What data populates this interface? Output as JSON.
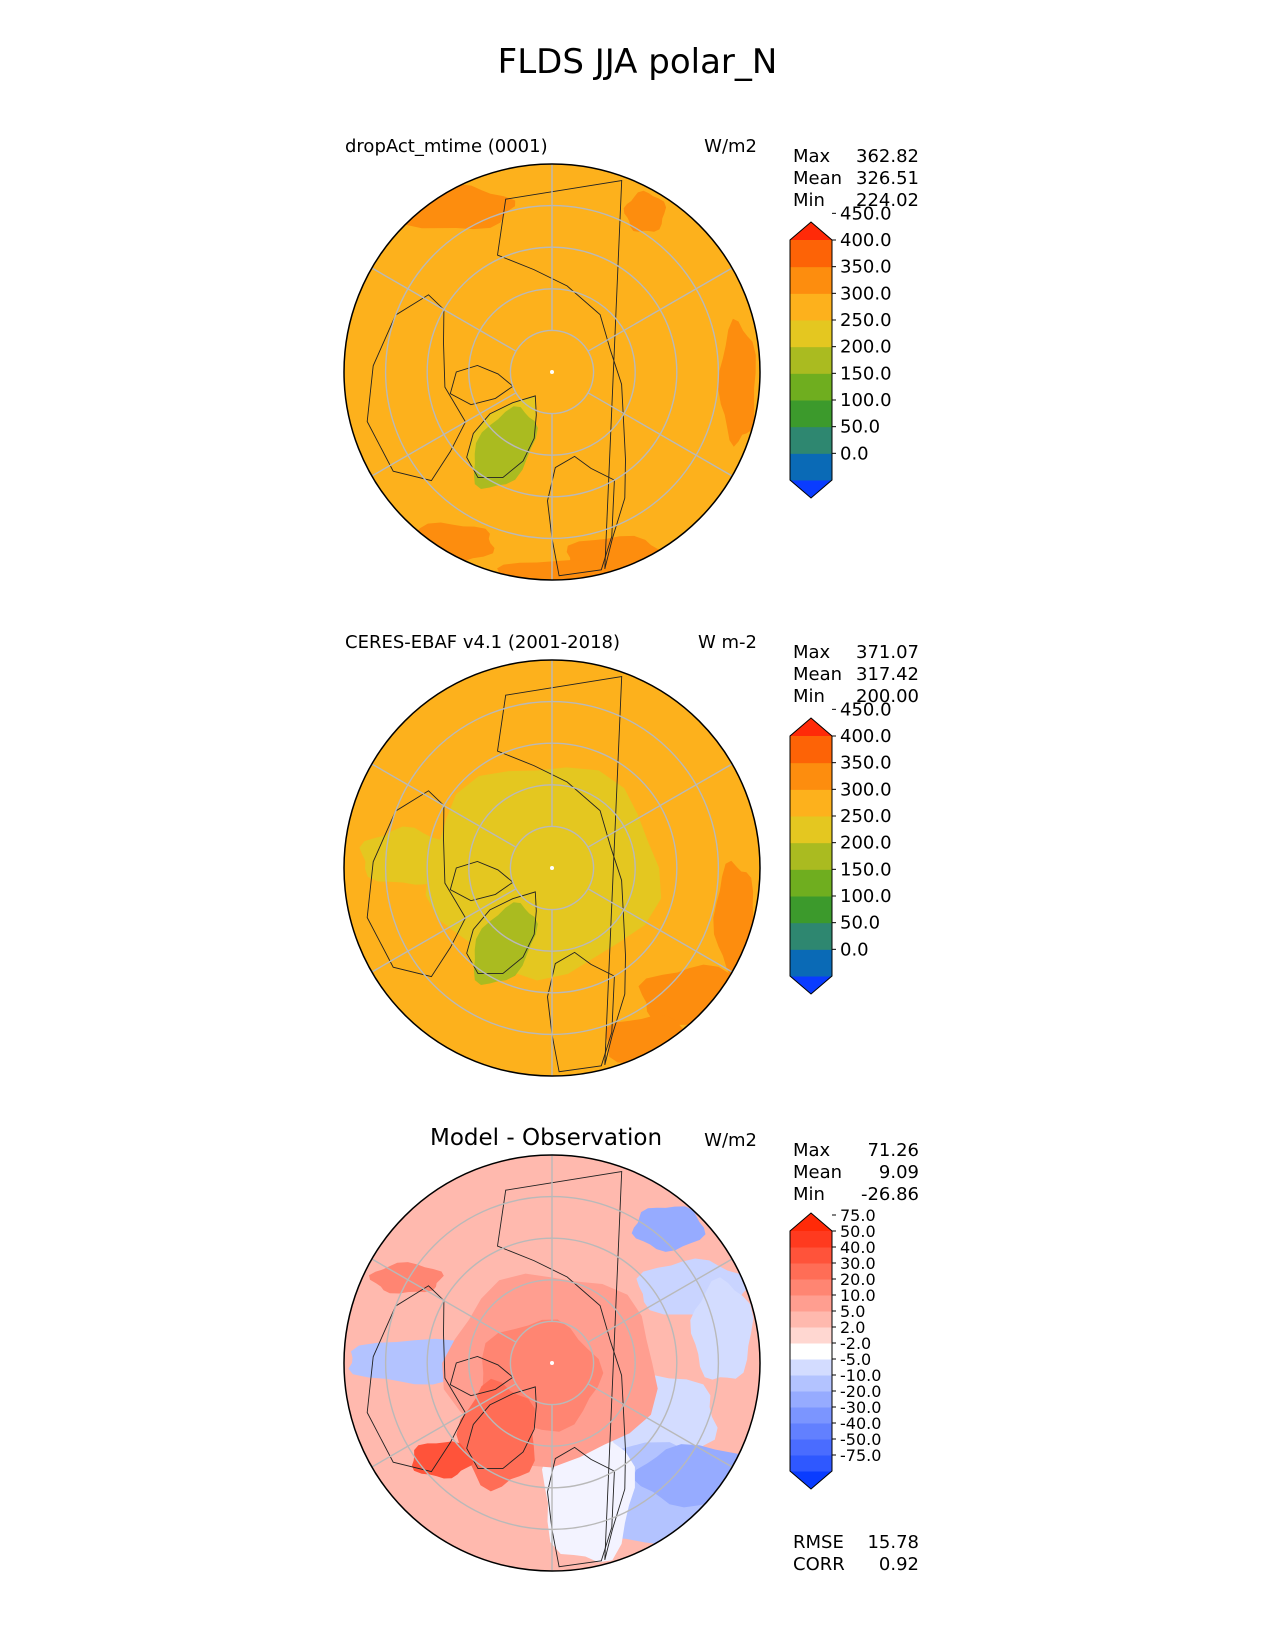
{
  "title": "FLDS JJA polar_N",
  "panels": [
    {
      "title": "dropAct_mtime (0001)",
      "units": "W/m2",
      "stats": [
        {
          "label": "Max",
          "value": "362.82"
        },
        {
          "label": "Mean",
          "value": "326.51"
        },
        {
          "label": "Min",
          "value": "224.02"
        }
      ],
      "colorbar": {
        "levels": [
          "0.0",
          "50.0",
          "100.0",
          "150.0",
          "200.0",
          "250.0",
          "300.0",
          "350.0",
          "400.0",
          "450.0"
        ],
        "colors": [
          "#0a3cff",
          "#0a6ab6",
          "#2e8770",
          "#3c9a2c",
          "#6fae1f",
          "#aabb20",
          "#e4c720",
          "#fdb11c",
          "#fd8d0e",
          "#fd6306",
          "#ff2a08"
        ],
        "extend": "both"
      },
      "field": {
        "background": "#fdb11c",
        "rim": "#fd8d0e",
        "ice": "#e4c720",
        "ice_core": "#aabb20"
      }
    },
    {
      "title": "CERES-EBAF v4.1 (2001-2018)",
      "units": "W m-2",
      "stats": [
        {
          "label": "Max",
          "value": "371.07"
        },
        {
          "label": "Mean",
          "value": "317.42"
        },
        {
          "label": "Min",
          "value": "200.00"
        }
      ],
      "colorbar": {
        "levels": [
          "0.0",
          "50.0",
          "100.0",
          "150.0",
          "200.0",
          "250.0",
          "300.0",
          "350.0",
          "400.0",
          "450.0"
        ],
        "colors": [
          "#0a3cff",
          "#0a6ab6",
          "#2e8770",
          "#3c9a2c",
          "#6fae1f",
          "#aabb20",
          "#e4c720",
          "#fdb11c",
          "#fd8d0e",
          "#fd6306",
          "#ff2a08"
        ],
        "extend": "both"
      },
      "field": {
        "background": "#fdb11c",
        "rim": "#fd8d0e",
        "ice": "#e4c720",
        "ice_core": "#aabb20"
      }
    },
    {
      "title": "Model - Observation",
      "units": "W/m2",
      "stats": [
        {
          "label": "Max",
          "value": "71.26"
        },
        {
          "label": "Mean",
          "value": "9.09"
        },
        {
          "label": "Min",
          "value": "-26.86"
        }
      ],
      "colorbar": {
        "levels": [
          "-75.0",
          "-50.0",
          "-40.0",
          "-30.0",
          "-20.0",
          "-10.0",
          "-5.0",
          "-2.0",
          "2.0",
          "5.0",
          "10.0",
          "20.0",
          "30.0",
          "40.0",
          "50.0",
          "75.0"
        ],
        "colors": [
          "#0a3cff",
          "#2f58ff",
          "#4a6cff",
          "#6280ff",
          "#7b95ff",
          "#96abff",
          "#b3c3ff",
          "#d3dcff",
          "#ffffff",
          "#ffd7d1",
          "#ffb9ae",
          "#ff9e90",
          "#ff8572",
          "#ff6d56",
          "#ff533a",
          "#ff3a1f",
          "#ff2a08"
        ],
        "extend": "both"
      },
      "field": {
        "background": "#ffb9ae",
        "rim": "#ffd7d1",
        "ice": "#ff8572",
        "ice_core": "#ff533a"
      }
    }
  ],
  "summary": [
    {
      "label": "RMSE",
      "value": "15.78"
    },
    {
      "label": "CORR",
      "value": "0.92"
    }
  ]
}
